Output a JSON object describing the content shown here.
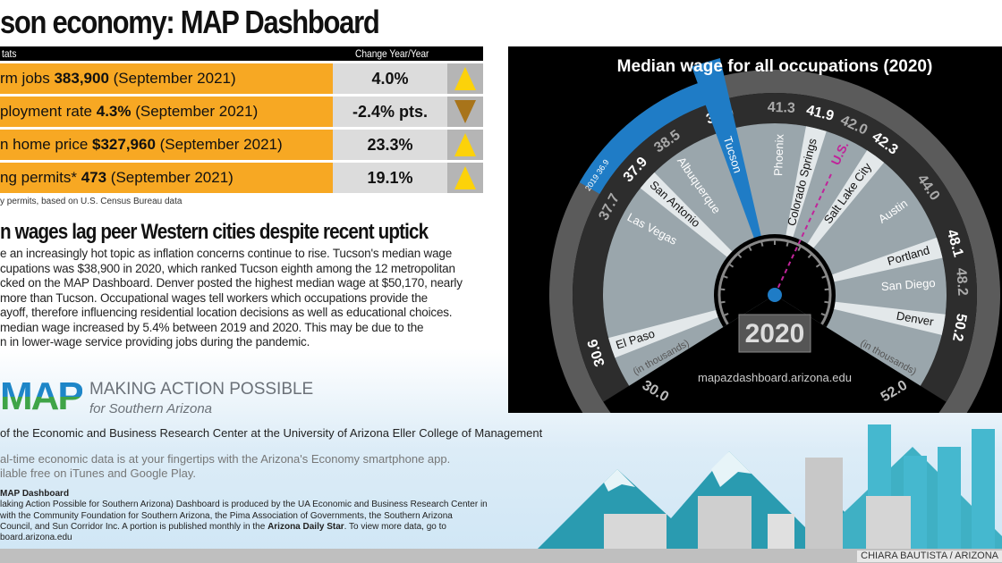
{
  "title": "son economy: MAP Dashboard",
  "stats": {
    "header_left": "tats",
    "header_right": "Change Year/Year",
    "rows": [
      {
        "label": "rm jobs ",
        "value": "383,900",
        "period": " (September 2021)",
        "change": "4.0%",
        "direction": "up"
      },
      {
        "label": "ployment rate ",
        "value": "4.3%",
        "period": " (September 2021)",
        "change": "-2.4% pts.",
        "direction": "down"
      },
      {
        "label": "n home price ",
        "value": "$327,960",
        "period": " (September 2021)",
        "change": "23.3%",
        "direction": "up"
      },
      {
        "label": "ng permits* ",
        "value": "473",
        "period": " (September 2021)",
        "change": "19.1%",
        "direction": "up"
      }
    ],
    "footnote": "y permits, based on U.S. Census Bureau data",
    "colors": {
      "row": "#f7a823",
      "up": "#fcd20a",
      "down": "#a8741a"
    }
  },
  "article": {
    "headline": "n wages lag peer Western cities despite recent uptick",
    "lines": [
      "e an increasingly hot topic as inflation concerns continue to rise. Tucson's median wage",
      "cupations was $38,900 in 2020, which ranked Tucson eighth among the 12 metropolitan",
      "cked on the MAP Dashboard. Denver posted the highest median wage at $50,170, nearly",
      " more than Tucson. Occupational wages tell workers which occupations provide the",
      "ayoff, therefore influencing residential location decisions as well as educational choices.",
      " median wage increased by 5.4% between 2019 and 2020. This may be due to the",
      "n in lower-wage service providing jobs during the pandemic."
    ]
  },
  "logo": {
    "text": "MAP",
    "name": "MAKING ACTION POSSIBLE",
    "sub": "for Southern Arizona"
  },
  "producer": "of the Economic and Business Research Center at the University of Arizona Eller College of Management",
  "app": [
    "al-time economic data is at your fingertips with the Arizona's Economy smartphone app.",
    "ilable free on iTunes and Google Play."
  ],
  "about": {
    "heading": "MAP Dashboard",
    "l1": "laking Action Possible for Southern Arizona) Dashboard is produced by the UA Economic and Business Research Center in",
    "l2": " with the Community Foundation for Southern Arizona, the Pima Association of Governments, the Southern Arizona",
    "l3a": "Council, and Sun Corridor Inc. A portion is published monthly in the ",
    "l3b": "Arizona Daily Star",
    "l3c": ". To view more data, go to",
    "l4": "board.arizona.edu"
  },
  "credit": "CHIARA BAUTISTA / ARIZONA",
  "chart_data": {
    "type": "gauge",
    "title": "Median wage for all occupations (2020)",
    "unit_label": "(in thousands)",
    "min": 30.0,
    "max": 52.0,
    "min_label": "30.0",
    "max_label": "52.0",
    "year": "2020",
    "url": "mapazdashboard.arizona.edu",
    "highlight": {
      "name": "Tucson",
      "value": 38.9,
      "prior_year": "2019",
      "prior_value": 36.9,
      "color": "#1f7cc6"
    },
    "reference": {
      "name": "U.S.",
      "value": 42.0,
      "color": "#c0249a"
    },
    "cities": [
      {
        "name": "El Paso",
        "value": 30.6
      },
      {
        "name": "Las Vegas",
        "value": 37.7
      },
      {
        "name": "San Antonio",
        "value": 37.9
      },
      {
        "name": "Albuquerque",
        "value": 38.5
      },
      {
        "name": "Tucson",
        "value": 38.9
      },
      {
        "name": "Phoenix",
        "value": 41.3
      },
      {
        "name": "Colorado Springs",
        "value": 41.9
      },
      {
        "name": "Salt Lake City",
        "value": 42.3
      },
      {
        "name": "Austin",
        "value": 44.0
      },
      {
        "name": "Portland",
        "value": 48.1
      },
      {
        "name": "San Diego",
        "value": 48.2
      },
      {
        "name": "Denver",
        "value": 50.2
      }
    ]
  }
}
